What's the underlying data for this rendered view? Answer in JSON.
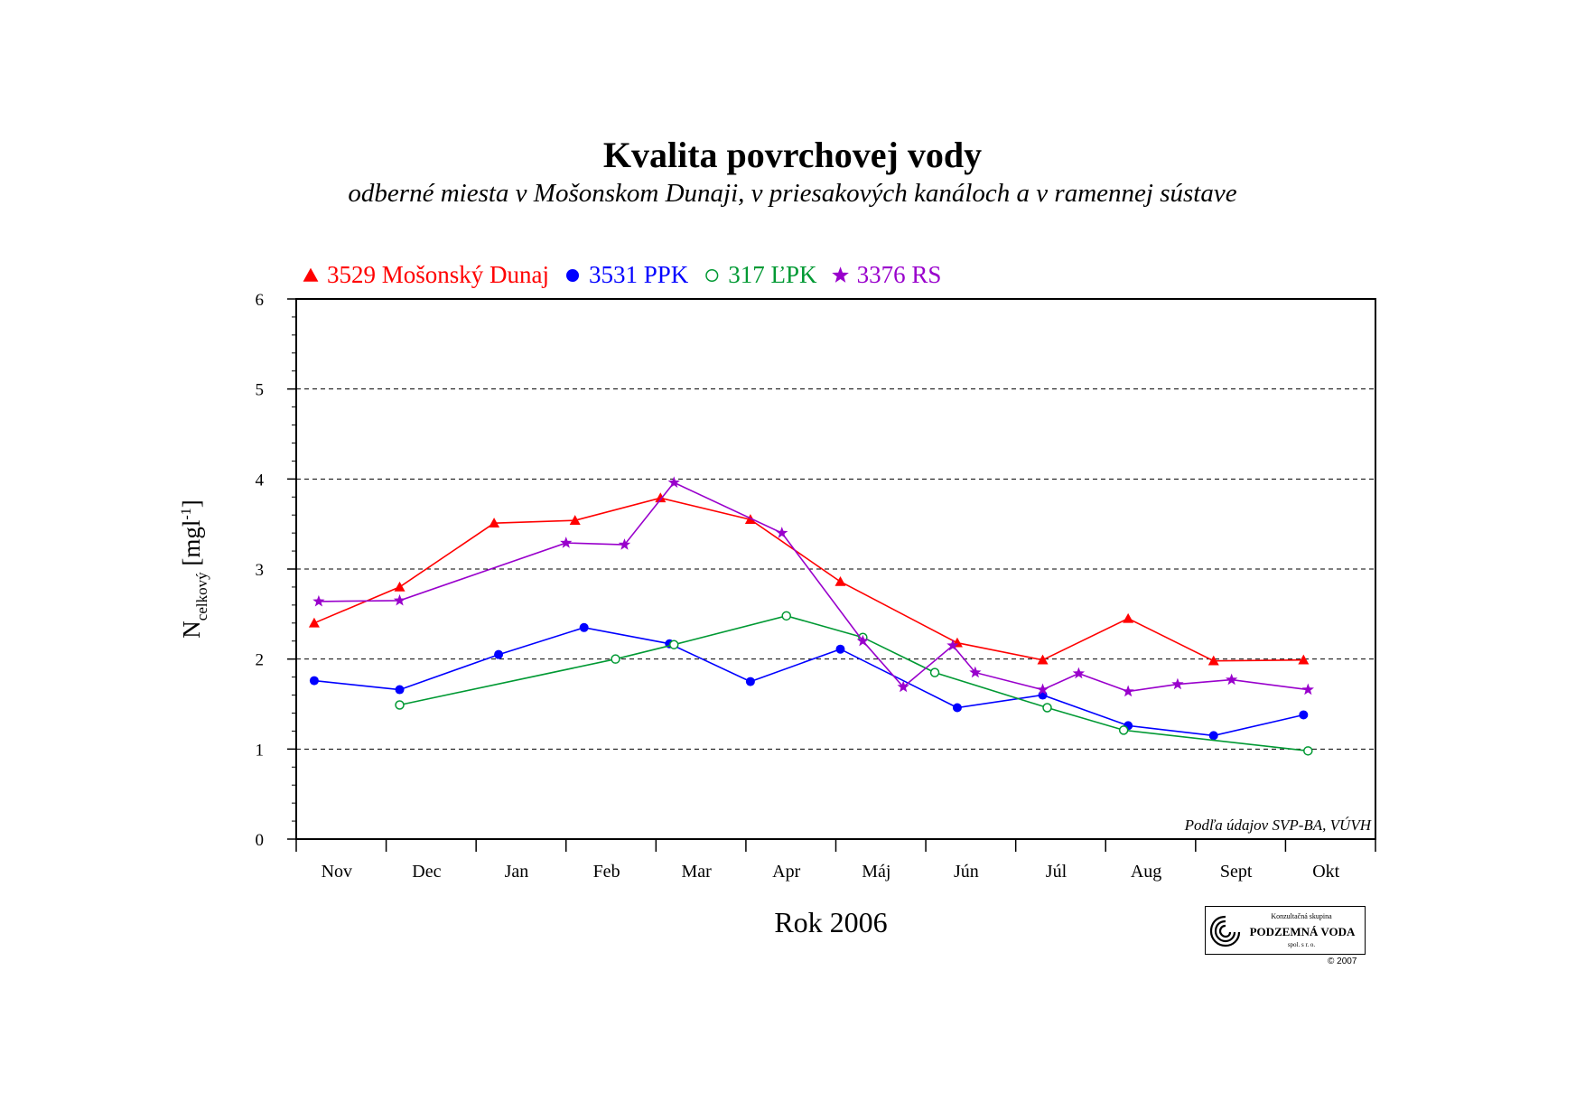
{
  "chart_data": {
    "type": "line",
    "title": "Kvalita povrchovej vody",
    "subtitle": "odberné miesta v Mošonskom Dunaji, v priesakových kanáloch a v ramennej sústave",
    "xlabel": "Rok 2006",
    "ylabel_main": "N",
    "ylabel_sub": "celkový",
    "ylabel_unit": " [mgl",
    "ylabel_sup": "-1",
    "ylabel_close": "]",
    "ylim": [
      0,
      6
    ],
    "yticks": [
      0,
      1,
      2,
      3,
      4,
      5,
      6
    ],
    "minor_per_major": 5,
    "xlim": [
      0,
      12
    ],
    "categories": [
      "Nov",
      "Dec",
      "Jan",
      "Feb",
      "Mar",
      "Apr",
      "Máj",
      "Jún",
      "Júl",
      "Aug",
      "Sept",
      "Okt"
    ],
    "grid": "horizontal dashed",
    "legend_position": "top-left",
    "source_note": "Podľa údajov SVP-BA, VÚVH",
    "series": [
      {
        "name": "3529 Mošonský Dunaj",
        "marker": "triangle",
        "color": "#ff0000",
        "x": [
          0.2,
          1.15,
          2.2,
          3.1,
          4.05,
          5.05,
          6.05,
          7.35,
          8.3,
          9.25,
          10.2,
          11.2
        ],
        "y": [
          2.4,
          2.8,
          3.51,
          3.54,
          3.79,
          3.55,
          2.86,
          2.18,
          1.99,
          2.45,
          1.98,
          1.99
        ]
      },
      {
        "name": "3531 PPK",
        "marker": "filled-circle",
        "color": "#0000ff",
        "x": [
          0.2,
          1.15,
          2.25,
          3.2,
          4.15,
          5.05,
          6.05,
          7.35,
          8.3,
          9.25,
          10.2,
          11.2
        ],
        "y": [
          1.76,
          1.66,
          2.05,
          2.35,
          2.17,
          1.75,
          2.11,
          1.46,
          1.6,
          1.26,
          1.15,
          1.38
        ]
      },
      {
        "name": "317 ĽPK",
        "marker": "open-circle",
        "color": "#009933",
        "x": [
          1.15,
          3.55,
          4.2,
          5.45,
          6.3,
          7.1,
          8.35,
          9.2,
          11.25
        ],
        "y": [
          1.49,
          2.0,
          2.16,
          2.48,
          2.24,
          1.85,
          1.46,
          1.21,
          0.98
        ]
      },
      {
        "name": "3376 RS",
        "marker": "star",
        "color": "#9900cc",
        "x": [
          0.25,
          1.15,
          3.0,
          3.65,
          4.2,
          5.4,
          6.3,
          6.75,
          7.3,
          7.55,
          8.3,
          8.7,
          9.25,
          9.8,
          10.4,
          11.25
        ],
        "y": [
          2.64,
          2.65,
          3.29,
          3.27,
          3.96,
          3.4,
          2.2,
          1.69,
          2.15,
          1.85,
          1.66,
          1.84,
          1.64,
          1.72,
          1.77,
          1.66
        ]
      }
    ]
  },
  "logo": {
    "line1": "Konzultačná skupina",
    "line2": "PODZEMNÁ VODA",
    "line3": "spol. s r. o.",
    "copyright": "© 2007"
  }
}
